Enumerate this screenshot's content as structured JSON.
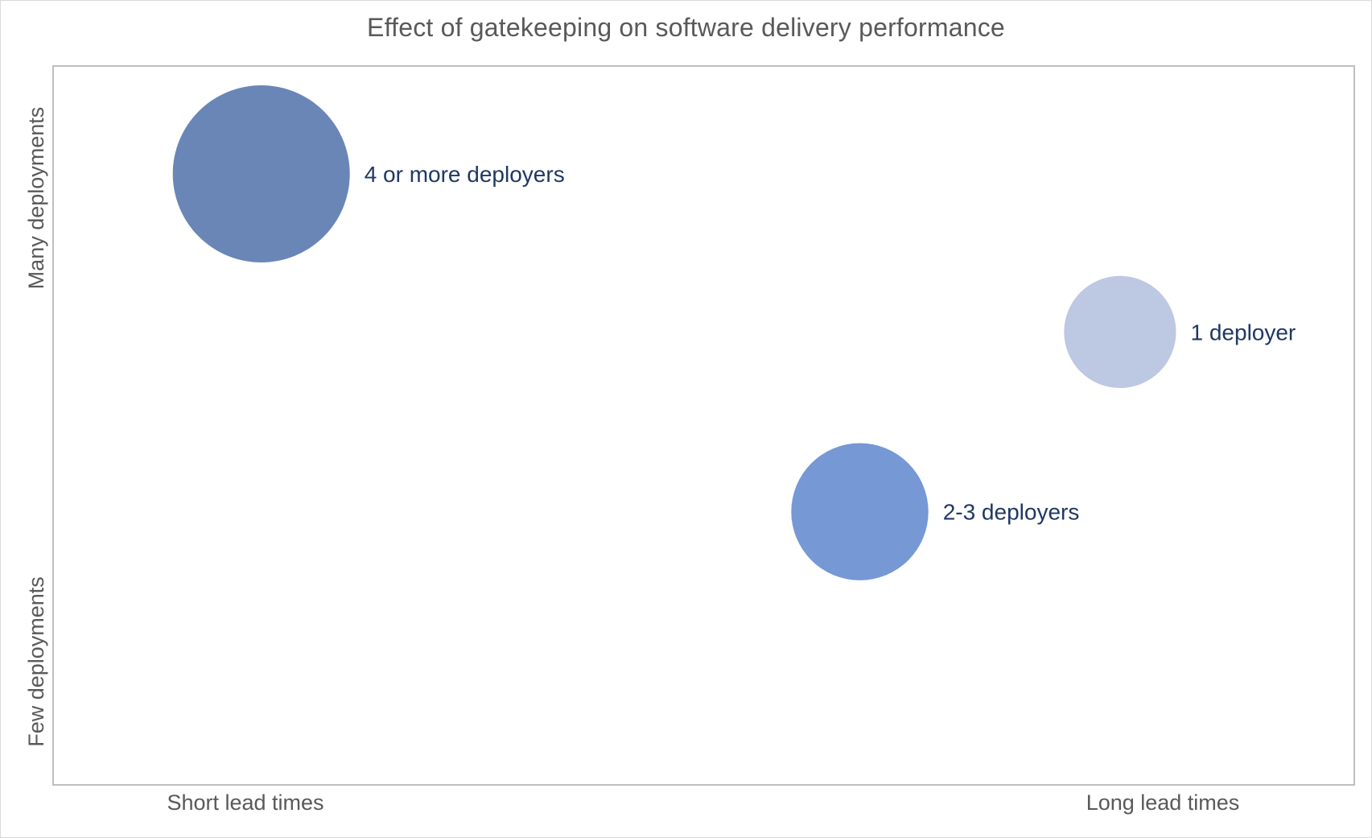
{
  "chart_data": {
    "type": "bubble",
    "title": "Effect of gatekeeping on software delivery performance",
    "x_axis": {
      "low_label": "Short lead times",
      "high_label": "Long lead times"
    },
    "y_axis": {
      "low_label": "Few deployments",
      "high_label": "Many deployments"
    },
    "xlim": [
      0,
      100
    ],
    "ylim": [
      0,
      100
    ],
    "grid": false,
    "legend": "none",
    "points": [
      {
        "label": "4 or more deployers",
        "x": 16,
        "y": 85,
        "size": 100,
        "color": "#6986b7"
      },
      {
        "label": "1 deployer",
        "x": 82,
        "y": 63,
        "size": 40,
        "color": "#bdc8e3"
      },
      {
        "label": "2-3 deployers",
        "x": 62,
        "y": 38,
        "size": 60,
        "color": "#7698d4"
      }
    ]
  }
}
